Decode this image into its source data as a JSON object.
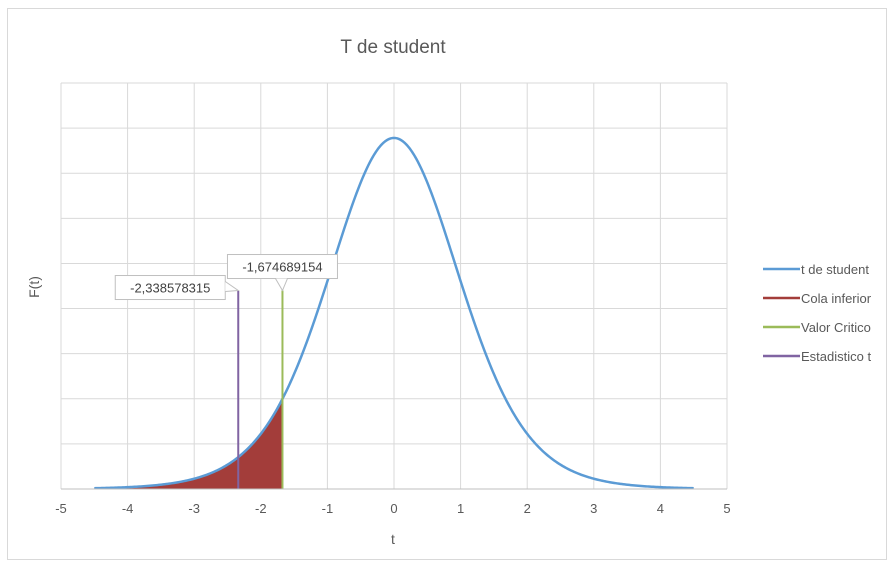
{
  "chart_data": {
    "type": "line",
    "title": "T de student",
    "xlabel": "t",
    "ylabel": "F(t)",
    "xlim": [
      -5,
      5
    ],
    "ylim": [
      0,
      0.45
    ],
    "x_ticks": [
      "-5",
      "-4",
      "-3",
      "-2",
      "-1",
      "0",
      "1",
      "2",
      "3",
      "4",
      "5"
    ],
    "grid": true,
    "legend_position": "right",
    "distribution_df": 10,
    "series": [
      {
        "name": "t de student",
        "color": "#5b9bd5",
        "x": [
          -4.5,
          -4.0,
          -3.5,
          -3.0,
          -2.5,
          -2.0,
          -1.674689154,
          -1.5,
          -1.0,
          -0.5,
          0.0,
          0.5,
          1.0,
          1.5,
          2.0,
          2.5,
          3.0,
          3.5,
          4.0,
          4.5
        ],
        "y": [
          0.0009,
          0.002,
          0.0046,
          0.0114,
          0.0269,
          0.0611,
          0.0976,
          0.1274,
          0.2304,
          0.3402,
          0.3891,
          0.3402,
          0.2304,
          0.1274,
          0.0611,
          0.0269,
          0.0114,
          0.0046,
          0.002,
          0.0009
        ]
      },
      {
        "name": "Cola inferior",
        "color": "#a33d3a",
        "x_range": [
          -4.5,
          -1.674689154
        ]
      },
      {
        "name": "Valor Critico",
        "color": "#9bbb59",
        "x": [
          -1.674689154,
          -1.674689154
        ],
        "y": [
          0,
          0.22
        ]
      },
      {
        "name": "Estadistico t",
        "color": "#8064a2",
        "x": [
          -2.338578315,
          -2.338578315
        ],
        "y": [
          0,
          0.22
        ]
      }
    ],
    "annotations": [
      {
        "text": "-1,674689154",
        "x": -1.674689154,
        "y": 0.22
      },
      {
        "text": "-2,338578315",
        "x": -2.338578315,
        "y": 0.22
      }
    ]
  }
}
